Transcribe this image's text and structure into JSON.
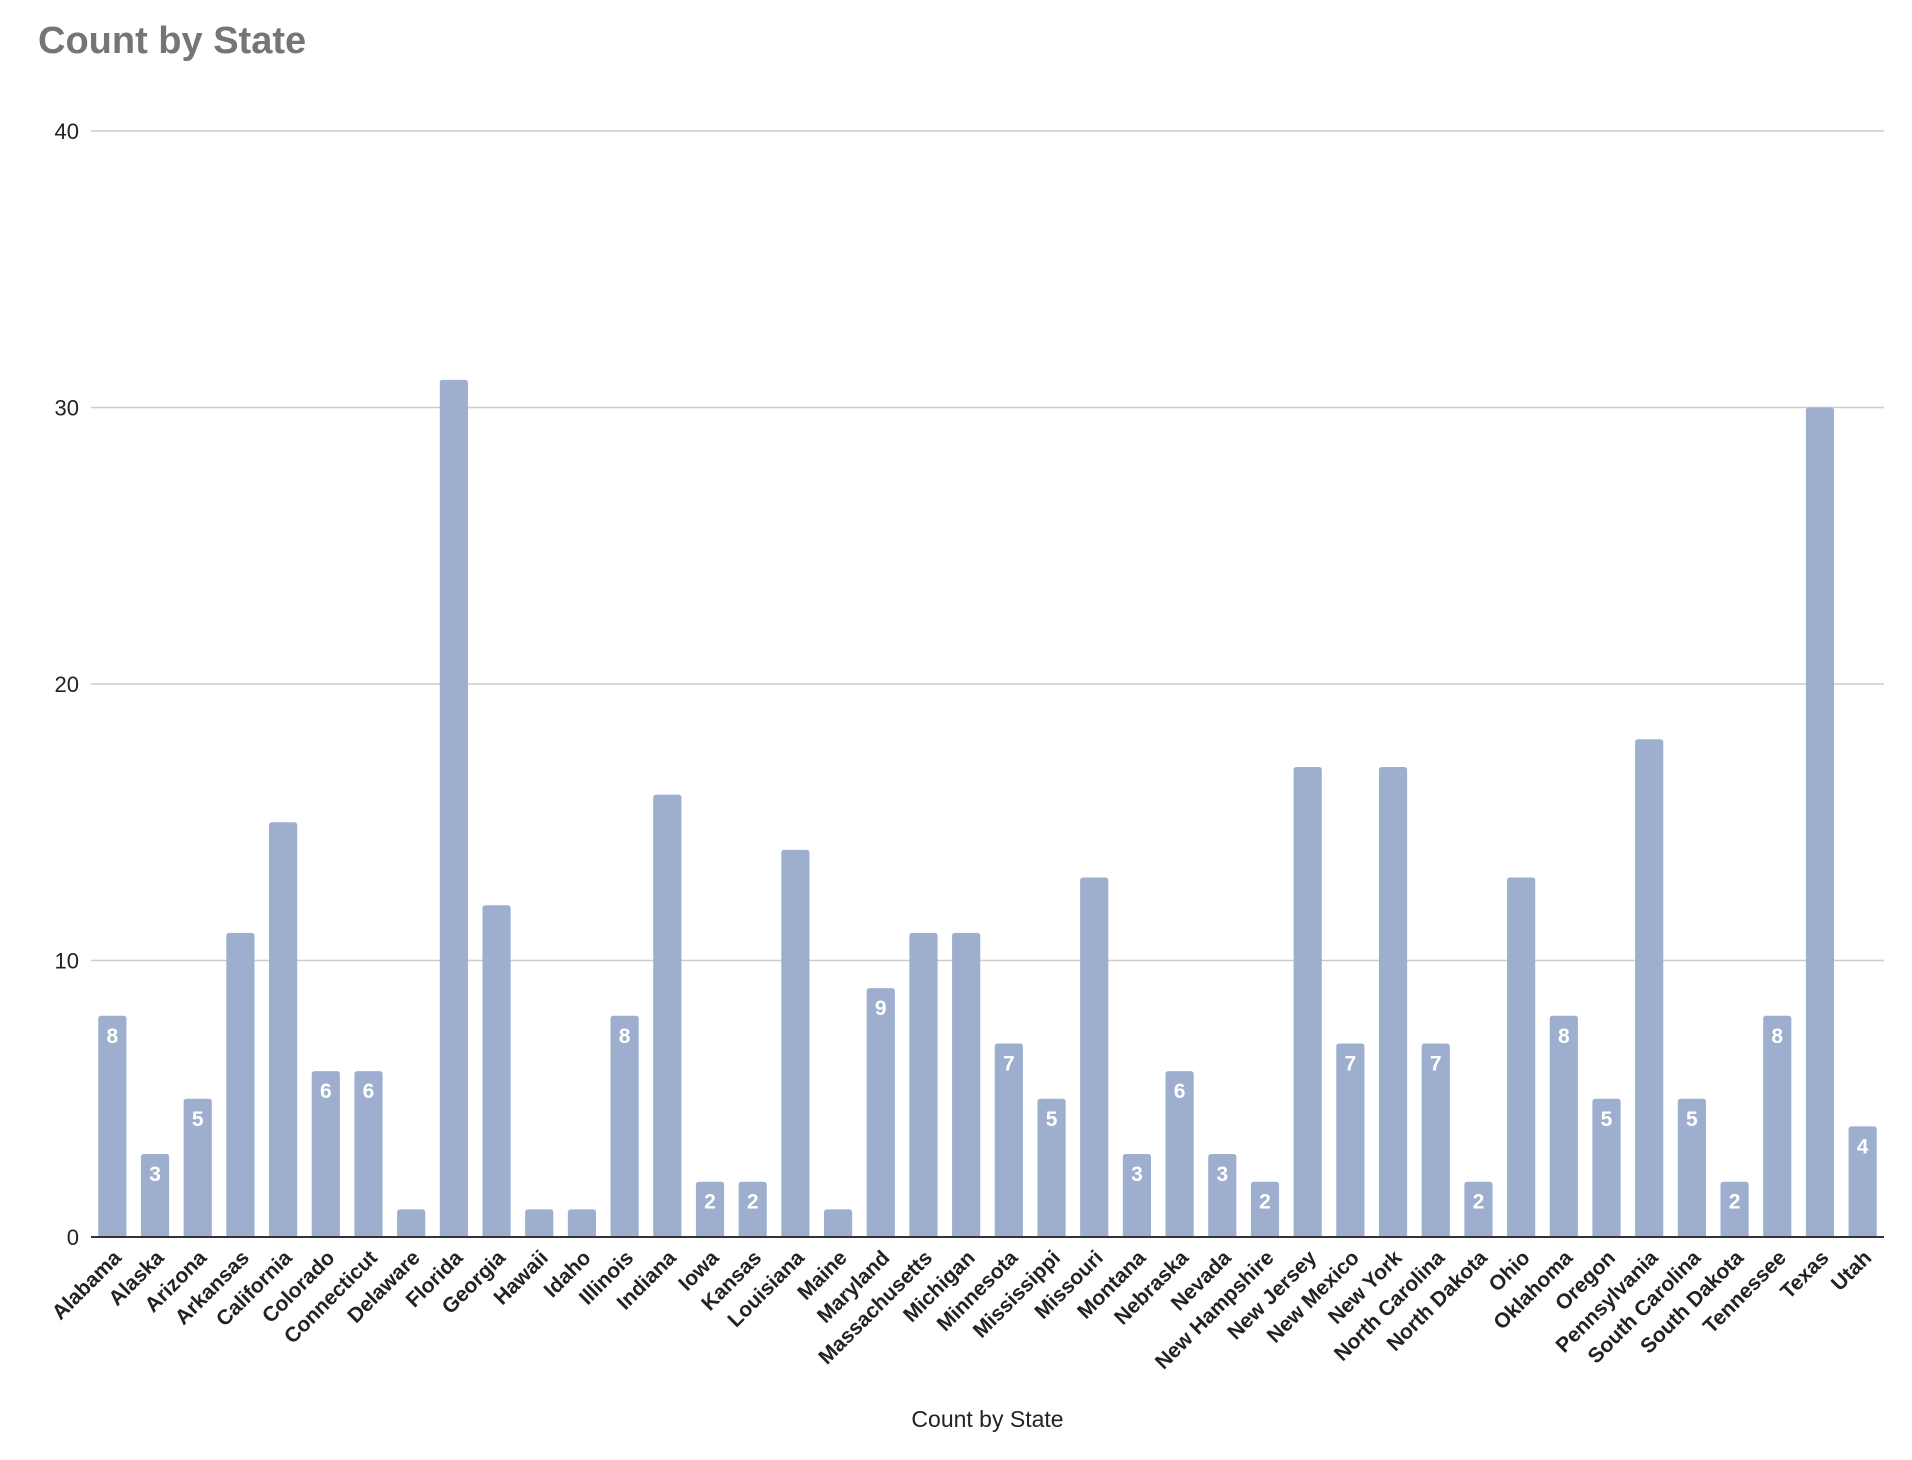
{
  "chart_data": {
    "type": "bar",
    "title": "Count by State",
    "xlabel": "Count by State",
    "ylabel": "",
    "ylim": [
      0,
      40
    ],
    "yticks": [
      0,
      10,
      20,
      30,
      40
    ],
    "grid": true,
    "legend": "none",
    "bar_color": "#9daecf",
    "categories": [
      "Alabama",
      "Alaska",
      "Arizona",
      "Arkansas",
      "California",
      "Colorado",
      "Connecticut",
      "Delaware",
      "Florida",
      "Georgia",
      "Hawaii",
      "Idaho",
      "Illinois",
      "Indiana",
      "Iowa",
      "Kansas",
      "Louisiana",
      "Maine",
      "Maryland",
      "Massachusetts",
      "Michigan",
      "Minnesota",
      "Mississippi",
      "Missouri",
      "Montana",
      "Nebraska",
      "Nevada",
      "New Hampshire",
      "New Jersey",
      "New Mexico",
      "New York",
      "North Carolina",
      "North Dakota",
      "Ohio",
      "Oklahoma",
      "Oregon",
      "Pennsylvania",
      "South Carolina",
      "South Dakota",
      "Tennessee",
      "Texas",
      "Utah"
    ],
    "values": [
      8,
      3,
      5,
      11,
      15,
      6,
      6,
      1,
      31,
      12,
      1,
      1,
      8,
      16,
      2,
      2,
      14,
      1,
      9,
      11,
      11,
      7,
      5,
      13,
      3,
      6,
      3,
      2,
      17,
      7,
      17,
      7,
      2,
      13,
      8,
      5,
      18,
      5,
      2,
      8,
      30,
      4
    ],
    "data_labels": [
      "8",
      "3",
      "5",
      "",
      "",
      "6",
      "6",
      "",
      "",
      "",
      "",
      "",
      "8",
      "",
      "2",
      "2",
      "",
      "",
      "9",
      "",
      "",
      "7",
      "5",
      "",
      "3",
      "6",
      "3",
      "2",
      "",
      "7",
      "",
      "7",
      "2",
      "",
      "8",
      "5",
      "",
      "5",
      "2",
      "8",
      "",
      "4"
    ]
  }
}
